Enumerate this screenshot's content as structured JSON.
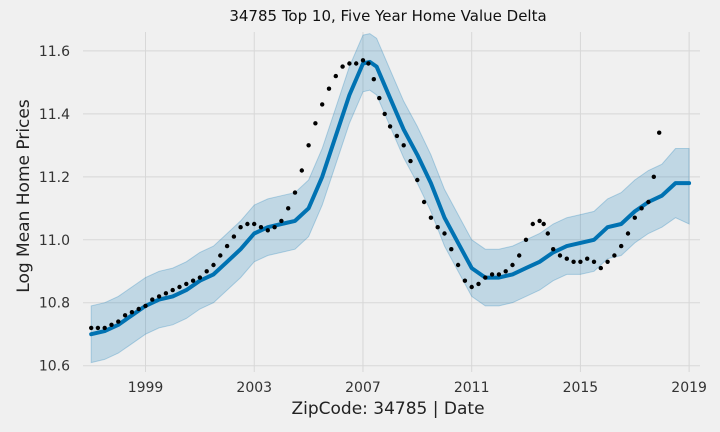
{
  "chart_data": {
    "type": "line",
    "title": "34785 Top 10, Five Year Home Value Delta",
    "xlabel": "ZipCode: 34785 | Date",
    "ylabel": "Log Mean Home Prices",
    "xlim": [
      1996.7,
      2019.4
    ],
    "ylim": [
      10.58,
      11.66
    ],
    "x_ticks": [
      1999,
      2003,
      2007,
      2011,
      2015,
      2019
    ],
    "x_tick_labels": [
      "1999",
      "2003",
      "2007",
      "2011",
      "2015",
      "2019"
    ],
    "y_ticks": [
      10.6,
      10.8,
      11.0,
      11.2,
      11.4,
      11.6
    ],
    "y_tick_labels": [
      "10.6",
      "10.8",
      "11.0",
      "11.2",
      "11.4",
      "11.6"
    ],
    "grid": true,
    "colors": {
      "forecast": "#0072b2",
      "interval": "#0072b2",
      "observed": "#000000",
      "background": "#f0f0f0",
      "grid": "#d7d7d7"
    },
    "series": [
      {
        "role": "forecast",
        "kind": "line",
        "x": [
          1997.0,
          1997.5,
          1998.0,
          1998.5,
          1999.0,
          1999.5,
          2000.0,
          2000.5,
          2001.0,
          2001.5,
          2002.0,
          2002.5,
          2003.0,
          2003.5,
          2004.0,
          2004.5,
          2005.0,
          2005.5,
          2006.0,
          2006.5,
          2007.0,
          2007.25,
          2007.5,
          2008.0,
          2008.5,
          2009.0,
          2009.5,
          2010.0,
          2010.5,
          2011.0,
          2011.5,
          2012.0,
          2012.5,
          2013.0,
          2013.5,
          2014.0,
          2014.5,
          2015.0,
          2015.5,
          2016.0,
          2016.5,
          2017.0,
          2017.5,
          2018.0,
          2018.5,
          2019.0
        ],
        "y": [
          10.7,
          10.71,
          10.73,
          10.76,
          10.79,
          10.81,
          10.82,
          10.84,
          10.87,
          10.89,
          10.93,
          10.97,
          11.02,
          11.04,
          11.05,
          11.06,
          11.1,
          11.2,
          11.33,
          11.46,
          11.56,
          11.565,
          11.55,
          11.45,
          11.35,
          11.27,
          11.18,
          11.07,
          10.99,
          10.91,
          10.88,
          10.88,
          10.89,
          10.91,
          10.93,
          10.96,
          10.98,
          10.99,
          11.0,
          11.04,
          11.05,
          11.09,
          11.12,
          11.14,
          11.18,
          11.18
        ]
      },
      {
        "role": "interval_upper",
        "kind": "band",
        "x": [
          1997.0,
          1997.5,
          1998.0,
          1998.5,
          1999.0,
          1999.5,
          2000.0,
          2000.5,
          2001.0,
          2001.5,
          2002.0,
          2002.5,
          2003.0,
          2003.5,
          2004.0,
          2004.5,
          2005.0,
          2005.5,
          2006.0,
          2006.5,
          2007.0,
          2007.25,
          2007.5,
          2008.0,
          2008.5,
          2009.0,
          2009.5,
          2010.0,
          2010.5,
          2011.0,
          2011.5,
          2012.0,
          2012.5,
          2013.0,
          2013.5,
          2014.0,
          2014.5,
          2015.0,
          2015.5,
          2016.0,
          2016.5,
          2017.0,
          2017.5,
          2018.0,
          2018.5,
          2019.0
        ],
        "y": [
          10.79,
          10.8,
          10.82,
          10.85,
          10.88,
          10.9,
          10.91,
          10.93,
          10.96,
          10.98,
          11.02,
          11.06,
          11.11,
          11.13,
          11.14,
          11.15,
          11.19,
          11.29,
          11.42,
          11.55,
          11.65,
          11.655,
          11.64,
          11.54,
          11.44,
          11.36,
          11.27,
          11.16,
          11.08,
          11.0,
          10.97,
          10.97,
          10.98,
          11.0,
          11.02,
          11.05,
          11.07,
          11.08,
          11.09,
          11.13,
          11.15,
          11.19,
          11.22,
          11.24,
          11.29,
          11.29
        ]
      },
      {
        "role": "interval_lower",
        "kind": "band",
        "x": [
          1997.0,
          1997.5,
          1998.0,
          1998.5,
          1999.0,
          1999.5,
          2000.0,
          2000.5,
          2001.0,
          2001.5,
          2002.0,
          2002.5,
          2003.0,
          2003.5,
          2004.0,
          2004.5,
          2005.0,
          2005.5,
          2006.0,
          2006.5,
          2007.0,
          2007.25,
          2007.5,
          2008.0,
          2008.5,
          2009.0,
          2009.5,
          2010.0,
          2010.5,
          2011.0,
          2011.5,
          2012.0,
          2012.5,
          2013.0,
          2013.5,
          2014.0,
          2014.5,
          2015.0,
          2015.5,
          2016.0,
          2016.5,
          2017.0,
          2017.5,
          2018.0,
          2018.5,
          2019.0
        ],
        "y": [
          10.61,
          10.62,
          10.64,
          10.67,
          10.7,
          10.72,
          10.73,
          10.75,
          10.78,
          10.8,
          10.84,
          10.88,
          10.93,
          10.95,
          10.96,
          10.97,
          11.01,
          11.11,
          11.24,
          11.37,
          11.47,
          11.475,
          11.46,
          11.36,
          11.26,
          11.18,
          11.09,
          10.98,
          10.9,
          10.82,
          10.79,
          10.79,
          10.8,
          10.82,
          10.84,
          10.87,
          10.89,
          10.89,
          10.9,
          10.94,
          10.95,
          10.99,
          11.02,
          11.04,
          11.07,
          11.05
        ]
      },
      {
        "role": "observed",
        "kind": "scatter",
        "x": [
          1997.0,
          1997.25,
          1997.5,
          1997.75,
          1998.0,
          1998.25,
          1998.5,
          1998.75,
          1999.0,
          1999.25,
          1999.5,
          1999.75,
          2000.0,
          2000.25,
          2000.5,
          2000.75,
          2001.0,
          2001.25,
          2001.5,
          2001.75,
          2002.0,
          2002.25,
          2002.5,
          2002.75,
          2003.0,
          2003.25,
          2003.5,
          2003.75,
          2004.0,
          2004.25,
          2004.5,
          2004.75,
          2005.0,
          2005.25,
          2005.5,
          2005.75,
          2006.0,
          2006.25,
          2006.5,
          2006.75,
          2007.0,
          2007.2,
          2007.4,
          2007.6,
          2007.8,
          2008.0,
          2008.25,
          2008.5,
          2008.75,
          2009.0,
          2009.25,
          2009.5,
          2009.75,
          2010.0,
          2010.25,
          2010.5,
          2010.75,
          2011.0,
          2011.25,
          2011.5,
          2011.75,
          2012.0,
          2012.25,
          2012.5,
          2012.75,
          2013.0,
          2013.25,
          2013.5,
          2013.65,
          2013.8,
          2014.0,
          2014.25,
          2014.5,
          2014.75,
          2015.0,
          2015.25,
          2015.5,
          2015.75,
          2016.0,
          2016.25,
          2016.5,
          2016.75,
          2017.0,
          2017.25,
          2017.5,
          2017.7,
          2017.9
        ],
        "y": [
          10.72,
          10.72,
          10.72,
          10.73,
          10.74,
          10.76,
          10.77,
          10.78,
          10.79,
          10.81,
          10.82,
          10.83,
          10.84,
          10.85,
          10.86,
          10.87,
          10.88,
          10.9,
          10.92,
          10.95,
          10.98,
          11.01,
          11.04,
          11.05,
          11.05,
          11.04,
          11.03,
          11.04,
          11.06,
          11.1,
          11.15,
          11.22,
          11.3,
          11.37,
          11.43,
          11.48,
          11.52,
          11.55,
          11.56,
          11.56,
          11.57,
          11.56,
          11.51,
          11.45,
          11.4,
          11.36,
          11.33,
          11.3,
          11.25,
          11.19,
          11.12,
          11.07,
          11.04,
          11.02,
          10.97,
          10.92,
          10.87,
          10.85,
          10.86,
          10.88,
          10.89,
          10.89,
          10.9,
          10.92,
          10.95,
          11.0,
          11.05,
          11.06,
          11.05,
          11.02,
          10.97,
          10.95,
          10.94,
          10.93,
          10.93,
          10.94,
          10.93,
          10.91,
          10.93,
          10.95,
          10.98,
          11.02,
          11.07,
          11.1,
          11.12,
          11.2,
          11.34
        ]
      }
    ]
  }
}
